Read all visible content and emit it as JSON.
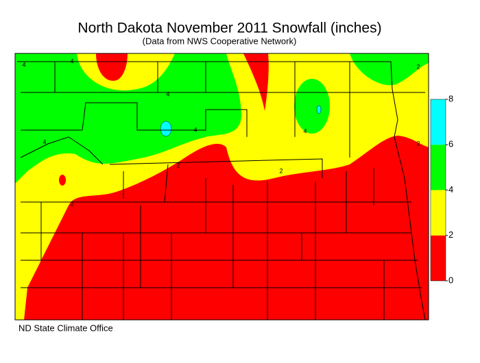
{
  "header": {
    "title": "North Dakota November 2011 Snowfall (inches)",
    "subtitle": "(Data from NWS Cooperative Network)"
  },
  "legend": {
    "ticks": [
      0,
      2,
      4,
      6,
      8
    ],
    "colors": [
      "#ff0000",
      "#ffff00",
      "#00ff00",
      "#00ffff"
    ]
  },
  "contour_labels": [
    "4",
    "4",
    "4",
    "4",
    "4",
    "4",
    "2",
    "2",
    "2",
    "2",
    "2"
  ],
  "footer": "ND State Climate Office"
}
